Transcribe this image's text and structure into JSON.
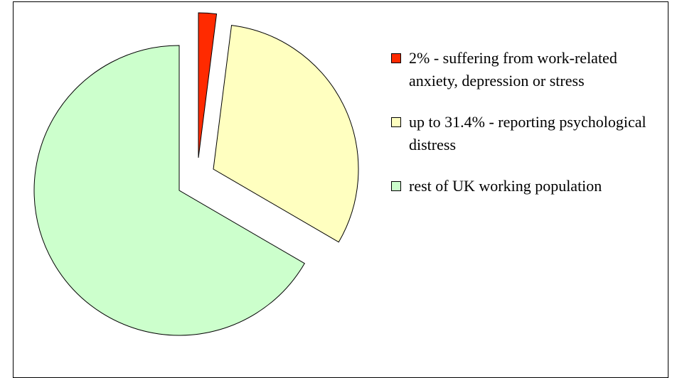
{
  "chart_data": {
    "type": "pie",
    "categories": [
      "2%  - suffering from work-related anxiety, depression or stress",
      "up to 31.4%  - reporting psychological distress",
      "rest of UK working population"
    ],
    "values": [
      2,
      31.4,
      66.6
    ],
    "colors": [
      "#ff2a00",
      "#ffffc0",
      "#ccffcc"
    ],
    "legend": "right"
  }
}
